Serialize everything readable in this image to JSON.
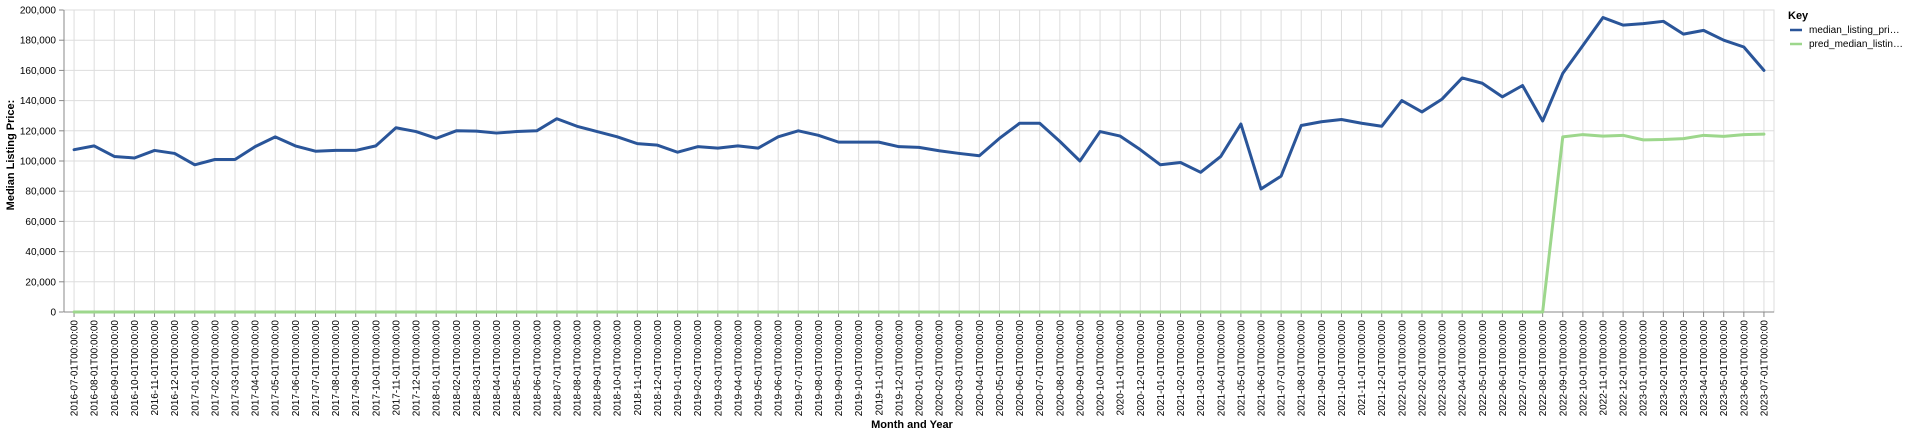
{
  "chart_data": {
    "type": "line",
    "title": "",
    "xlabel": "Month and Year",
    "ylabel": "Median Listing Price:",
    "ylim": [
      0,
      200000
    ],
    "yticks": [
      0,
      20000,
      40000,
      60000,
      80000,
      100000,
      120000,
      140000,
      160000,
      180000,
      200000
    ],
    "ytick_labels": [
      "0",
      "20,000",
      "40,000",
      "60,000",
      "80,000",
      "100,000",
      "120,000",
      "140,000",
      "160,000",
      "180,000",
      "200,000"
    ],
    "grid": true,
    "legend": {
      "title": "Key",
      "placement": "right",
      "entries": [
        "median_listing_pri…",
        "pred_median_listin…"
      ]
    },
    "categories": [
      "2016-07-01T00:00:00",
      "2016-08-01T00:00:00",
      "2016-09-01T00:00:00",
      "2016-10-01T00:00:00",
      "2016-11-01T00:00:00",
      "2016-12-01T00:00:00",
      "2017-01-01T00:00:00",
      "2017-02-01T00:00:00",
      "2017-03-01T00:00:00",
      "2017-04-01T00:00:00",
      "2017-05-01T00:00:00",
      "2017-06-01T00:00:00",
      "2017-07-01T00:00:00",
      "2017-08-01T00:00:00",
      "2017-09-01T00:00:00",
      "2017-10-01T00:00:00",
      "2017-11-01T00:00:00",
      "2017-12-01T00:00:00",
      "2018-01-01T00:00:00",
      "2018-02-01T00:00:00",
      "2018-03-01T00:00:00",
      "2018-04-01T00:00:00",
      "2018-05-01T00:00:00",
      "2018-06-01T00:00:00",
      "2018-07-01T00:00:00",
      "2018-08-01T00:00:00",
      "2018-09-01T00:00:00",
      "2018-10-01T00:00:00",
      "2018-11-01T00:00:00",
      "2018-12-01T00:00:00",
      "2019-01-01T00:00:00",
      "2019-02-01T00:00:00",
      "2019-03-01T00:00:00",
      "2019-04-01T00:00:00",
      "2019-05-01T00:00:00",
      "2019-06-01T00:00:00",
      "2019-07-01T00:00:00",
      "2019-08-01T00:00:00",
      "2019-09-01T00:00:00",
      "2019-10-01T00:00:00",
      "2019-11-01T00:00:00",
      "2019-12-01T00:00:00",
      "2020-01-01T00:00:00",
      "2020-02-01T00:00:00",
      "2020-03-01T00:00:00",
      "2020-04-01T00:00:00",
      "2020-05-01T00:00:00",
      "2020-06-01T00:00:00",
      "2020-07-01T00:00:00",
      "2020-08-01T00:00:00",
      "2020-09-01T00:00:00",
      "2020-10-01T00:00:00",
      "2020-11-01T00:00:00",
      "2020-12-01T00:00:00",
      "2021-01-01T00:00:00",
      "2021-02-01T00:00:00",
      "2021-03-01T00:00:00",
      "2021-04-01T00:00:00",
      "2021-05-01T00:00:00",
      "2021-06-01T00:00:00",
      "2021-07-01T00:00:00",
      "2021-08-01T00:00:00",
      "2021-09-01T00:00:00",
      "2021-10-01T00:00:00",
      "2021-11-01T00:00:00",
      "2021-12-01T00:00:00",
      "2022-01-01T00:00:00",
      "2022-02-01T00:00:00",
      "2022-03-01T00:00:00",
      "2022-04-01T00:00:00",
      "2022-05-01T00:00:00",
      "2022-06-01T00:00:00",
      "2022-07-01T00:00:00",
      "2022-08-01T00:00:00",
      "2022-09-01T00:00:00",
      "2022-10-01T00:00:00",
      "2022-11-01T00:00:00",
      "2022-12-01T00:00:00",
      "2023-01-01T00:00:00",
      "2023-02-01T00:00:00",
      "2023-03-01T00:00:00",
      "2023-04-01T00:00:00",
      "2023-05-01T00:00:00",
      "2023-06-01T00:00:00",
      "2023-07-01T00:00:00"
    ],
    "series": [
      {
        "name": "median_listing_pri…",
        "color": "#2a5599",
        "values": [
          107500,
          110000,
          103000,
          102000,
          107000,
          105000,
          97500,
          101000,
          101000,
          109500,
          116000,
          110000,
          106500,
          107000,
          107000,
          110000,
          122000,
          119500,
          115000,
          120000,
          119800,
          118500,
          119500,
          120000,
          128000,
          123000,
          119500,
          116000,
          111500,
          110500,
          105800,
          109500,
          108500,
          110000,
          108500,
          116000,
          120000,
          117000,
          112500,
          112500,
          112500,
          109500,
          109000,
          106800,
          105000,
          103500,
          115000,
          125000,
          125000,
          113000,
          100000,
          119500,
          116500,
          107500,
          97500,
          99000,
          92500,
          103000,
          124500,
          81500,
          90000,
          123500,
          126000,
          127500,
          125000,
          123000,
          140000,
          132500,
          141000,
          155000,
          151500,
          142500,
          150000,
          126500,
          158000,
          176500,
          195000,
          190000,
          191000,
          192500,
          184000,
          186500,
          180000,
          175500,
          160000
        ]
      },
      {
        "name": "pred_median_listin…",
        "color": "#9dd78c",
        "values": [
          0,
          0,
          0,
          0,
          0,
          0,
          0,
          0,
          0,
          0,
          0,
          0,
          0,
          0,
          0,
          0,
          0,
          0,
          0,
          0,
          0,
          0,
          0,
          0,
          0,
          0,
          0,
          0,
          0,
          0,
          0,
          0,
          0,
          0,
          0,
          0,
          0,
          0,
          0,
          0,
          0,
          0,
          0,
          0,
          0,
          0,
          0,
          0,
          0,
          0,
          0,
          0,
          0,
          0,
          0,
          0,
          0,
          0,
          0,
          0,
          0,
          0,
          0,
          0,
          0,
          0,
          0,
          0,
          0,
          0,
          0,
          0,
          0,
          0,
          116000,
          117500,
          116500,
          117000,
          114000,
          114200,
          114800,
          117000,
          116300,
          117500,
          117800
        ]
      }
    ]
  }
}
